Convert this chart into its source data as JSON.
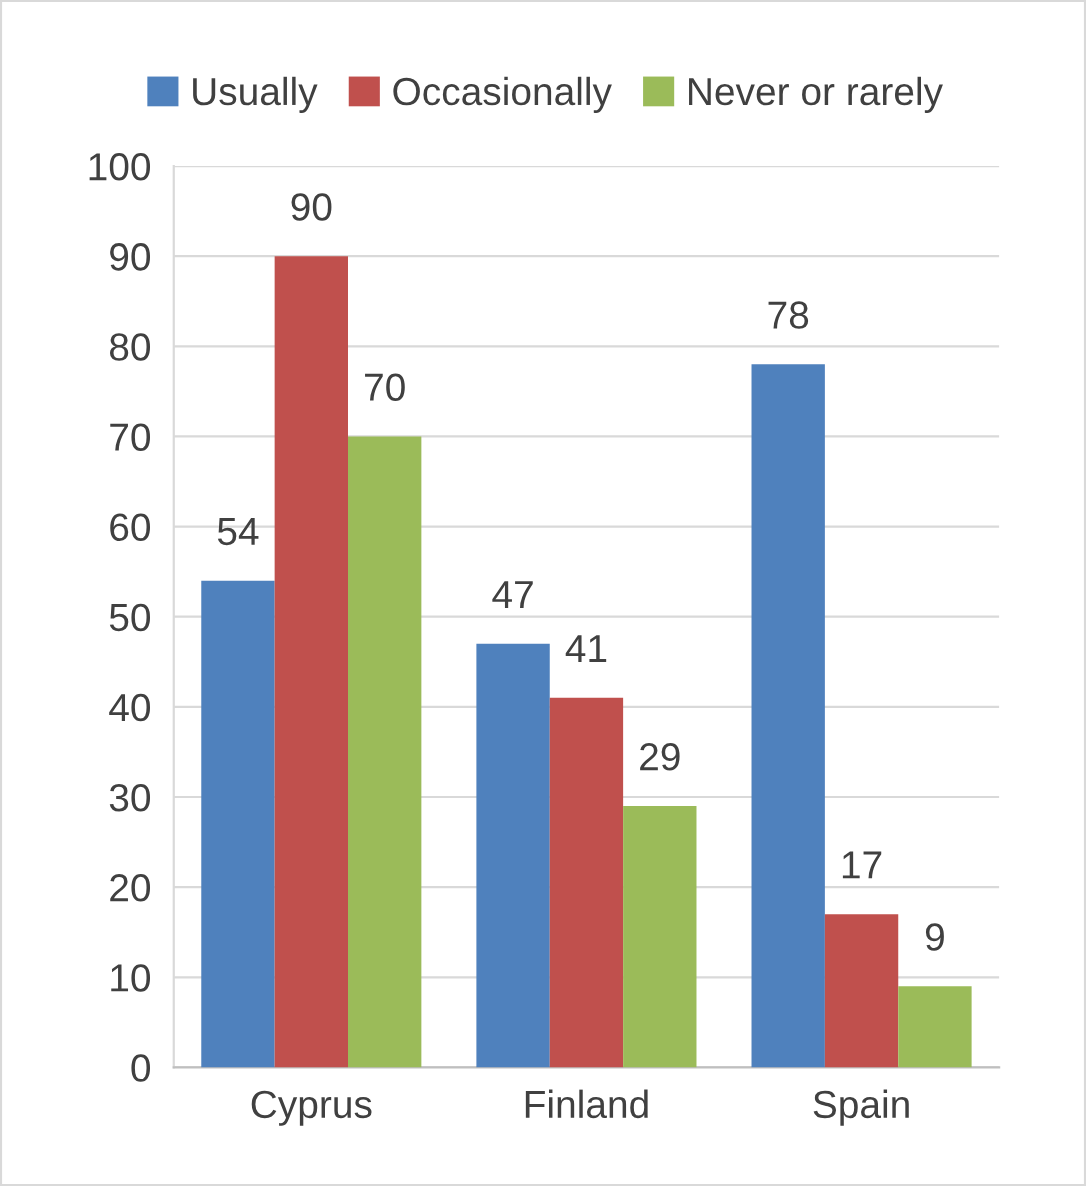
{
  "chart_data": {
    "type": "bar",
    "categories": [
      "Cyprus",
      "Finland",
      "Spain"
    ],
    "series": [
      {
        "name": "Usually",
        "color": "#4f81bd",
        "values": [
          54,
          47,
          78
        ]
      },
      {
        "name": "Occasionally",
        "color": "#c0504d",
        "values": [
          90,
          41,
          17
        ]
      },
      {
        "name": "Never or rarely",
        "color": "#9bbb59",
        "values": [
          70,
          29,
          9
        ]
      }
    ],
    "ylim": [
      0,
      100
    ],
    "yticks": [
      0,
      10,
      20,
      30,
      40,
      50,
      60,
      70,
      80,
      90,
      100
    ],
    "grid": "y",
    "legend": "top",
    "data_labels": true
  }
}
